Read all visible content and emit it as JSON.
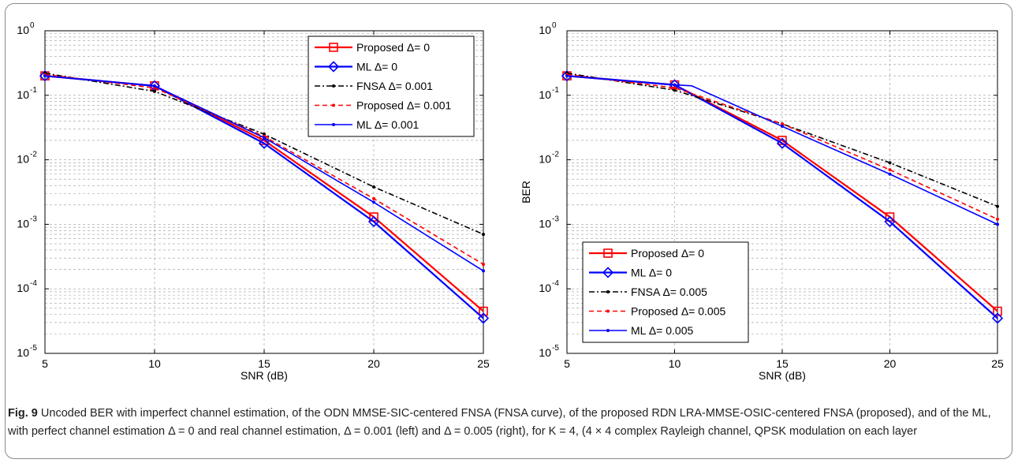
{
  "chart_data": [
    {
      "type": "line",
      "xlabel": "SNR (dB)",
      "ylabel": "",
      "xlim": [
        5,
        25
      ],
      "ylim": [
        1e-05,
        1
      ],
      "yscale": "log",
      "grid": true,
      "legend_position": "top-right",
      "xticks": [
        "5",
        "10",
        "15",
        "20",
        "25"
      ],
      "yticks": [
        {
          "base": "10",
          "exp": "0"
        },
        {
          "base": "10",
          "exp": "-1"
        },
        {
          "base": "10",
          "exp": "-2"
        },
        {
          "base": "10",
          "exp": "-3"
        },
        {
          "base": "10",
          "exp": "-4"
        },
        {
          "base": "10",
          "exp": "-5"
        }
      ],
      "series": [
        {
          "name": "Proposed Δ= 0",
          "color": "#ff0000",
          "dash": "solid",
          "marker": "square",
          "x": [
            5,
            10,
            15,
            20,
            25
          ],
          "y": [
            0.2,
            0.14,
            0.02,
            0.0013,
            4.5e-05
          ]
        },
        {
          "name": "ML Δ= 0",
          "color": "#0000ff",
          "dash": "solid",
          "marker": "diamond",
          "x": [
            5,
            10,
            15,
            20,
            25
          ],
          "y": [
            0.2,
            0.14,
            0.018,
            0.0011,
            3.5e-05
          ]
        },
        {
          "name": "FNSA Δ= 0.001",
          "color": "#000000",
          "dash": "dashdot",
          "marker": "dot",
          "x": [
            5,
            10,
            15,
            20,
            25
          ],
          "y": [
            0.22,
            0.115,
            0.025,
            0.0038,
            0.0007
          ]
        },
        {
          "name": "Proposed Δ= 0.001",
          "color": "#ff0000",
          "dash": "dashed",
          "marker": "dot",
          "x": [
            5,
            10,
            15,
            20,
            25
          ],
          "y": [
            0.21,
            0.13,
            0.023,
            0.0025,
            0.00024
          ]
        },
        {
          "name": "ML Δ= 0.001",
          "color": "#0000ff",
          "dash": "solid",
          "marker": "dot",
          "x": [
            5,
            10,
            15,
            20,
            25
          ],
          "y": [
            0.2,
            0.14,
            0.022,
            0.0022,
            0.00019
          ]
        }
      ]
    },
    {
      "type": "line",
      "xlabel": "SNR (dB)",
      "ylabel": "BER",
      "xlim": [
        5,
        25
      ],
      "ylim": [
        1e-05,
        1
      ],
      "yscale": "log",
      "grid": true,
      "legend_position": "bottom-left",
      "xticks": [
        "5",
        "10",
        "15",
        "20",
        "25"
      ],
      "yticks": [
        {
          "base": "10",
          "exp": "0"
        },
        {
          "base": "10",
          "exp": "-1"
        },
        {
          "base": "10",
          "exp": "-2"
        },
        {
          "base": "10",
          "exp": "-3"
        },
        {
          "base": "10",
          "exp": "-4"
        },
        {
          "base": "10",
          "exp": "-5"
        }
      ],
      "series": [
        {
          "name": "Proposed Δ= 0",
          "color": "#ff0000",
          "dash": "solid",
          "marker": "square",
          "x": [
            5,
            10,
            15,
            20,
            25
          ],
          "y": [
            0.2,
            0.145,
            0.02,
            0.0013,
            4.5e-05
          ]
        },
        {
          "name": "ML Δ= 0",
          "color": "#0000ff",
          "dash": "solid",
          "marker": "diamond",
          "x": [
            5,
            10,
            15,
            20,
            25
          ],
          "y": [
            0.2,
            0.145,
            0.018,
            0.0011,
            3.5e-05
          ]
        },
        {
          "name": "FNSA Δ= 0.005",
          "color": "#000000",
          "dash": "dashdot",
          "marker": "dot",
          "x": [
            5,
            10,
            15,
            20,
            25
          ],
          "y": [
            0.22,
            0.12,
            0.036,
            0.009,
            0.0019
          ]
        },
        {
          "name": "Proposed Δ= 0.005",
          "color": "#ff0000",
          "dash": "dashed",
          "marker": "dot",
          "x": [
            5,
            10,
            15,
            20,
            25
          ],
          "y": [
            0.21,
            0.13,
            0.036,
            0.007,
            0.0012
          ]
        },
        {
          "name": "ML Δ= 0.005",
          "color": "#0000ff",
          "dash": "solid",
          "marker": "dot",
          "x": [
            5,
            10,
            10.8,
            15,
            20,
            25
          ],
          "y": [
            0.2,
            0.145,
            0.14,
            0.033,
            0.006,
            0.001
          ]
        }
      ]
    }
  ],
  "caption": {
    "label": "Fig. 9",
    "text": "Uncoded BER with imperfect channel estimation, of the ODN MMSE-SIC-centered FNSA (FNSA curve), of the proposed RDN LRA-MMSE-OSIC-centered FNSA (proposed), and of the ML, with perfect channel estimation Δ = 0 and real channel estimation, Δ = 0.001 (left) and Δ = 0.005 (right), for K = 4, (4 × 4 complex Rayleigh channel, QPSK modulation on each layer"
  }
}
